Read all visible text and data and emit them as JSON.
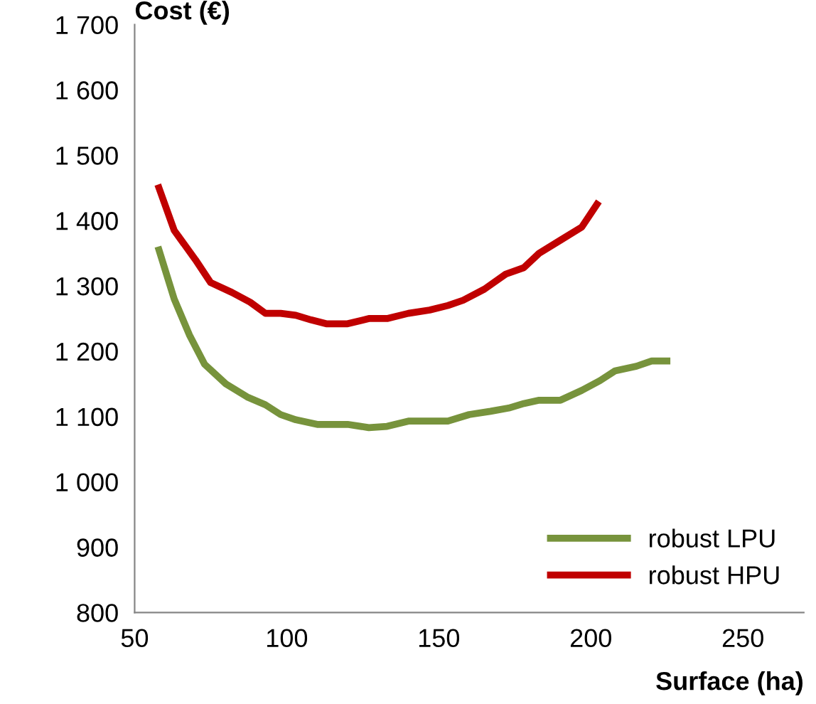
{
  "chart_data": {
    "type": "line",
    "xlabel": "Surface (ha)",
    "ylabel": "Cost (€)",
    "xlim": [
      50,
      270
    ],
    "xticks": [
      50,
      100,
      150,
      200,
      250
    ],
    "ylim": [
      800,
      1700
    ],
    "yticks": [
      {
        "value": 800,
        "label": "800"
      },
      {
        "value": 900,
        "label": "900"
      },
      {
        "value": 1000,
        "label": "1 000"
      },
      {
        "value": 1100,
        "label": "1 100"
      },
      {
        "value": 1200,
        "label": "1 200"
      },
      {
        "value": 1300,
        "label": "1 300"
      },
      {
        "value": 1400,
        "label": "1 400"
      },
      {
        "value": 1500,
        "label": "1 500"
      },
      {
        "value": 1600,
        "label": "1 600"
      },
      {
        "value": 1700,
        "label": "1 700"
      }
    ],
    "grid": false,
    "legend": "bottom right",
    "marker": "none",
    "line_style": "solid",
    "series": [
      {
        "name": "robust LPU",
        "color": "#77933c",
        "x": [
          58,
          63,
          68,
          73,
          80,
          87,
          93,
          98,
          103,
          110,
          120,
          127,
          133,
          140,
          147,
          153,
          160,
          167,
          173,
          178,
          183,
          190,
          197,
          203,
          208,
          215,
          220,
          225
        ],
        "values": [
          1355,
          1280,
          1225,
          1180,
          1150,
          1130,
          1118,
          1103,
          1095,
          1088,
          1088,
          1083,
          1085,
          1093,
          1093,
          1093,
          1103,
          1108,
          1113,
          1120,
          1125,
          1125,
          1140,
          1155,
          1170,
          1177,
          1185,
          1185
        ]
      },
      {
        "name": "robust HPU",
        "color": "#c00000",
        "x": [
          58,
          63,
          70,
          75,
          82,
          88,
          93,
          98,
          103,
          108,
          113,
          120,
          127,
          133,
          140,
          147,
          153,
          158,
          165,
          172,
          178,
          183,
          190,
          197,
          202
        ],
        "values": [
          1450,
          1385,
          1340,
          1305,
          1290,
          1275,
          1258,
          1258,
          1255,
          1248,
          1242,
          1242,
          1250,
          1250,
          1258,
          1263,
          1270,
          1278,
          1295,
          1318,
          1328,
          1350,
          1370,
          1390,
          1425
        ]
      }
    ]
  }
}
